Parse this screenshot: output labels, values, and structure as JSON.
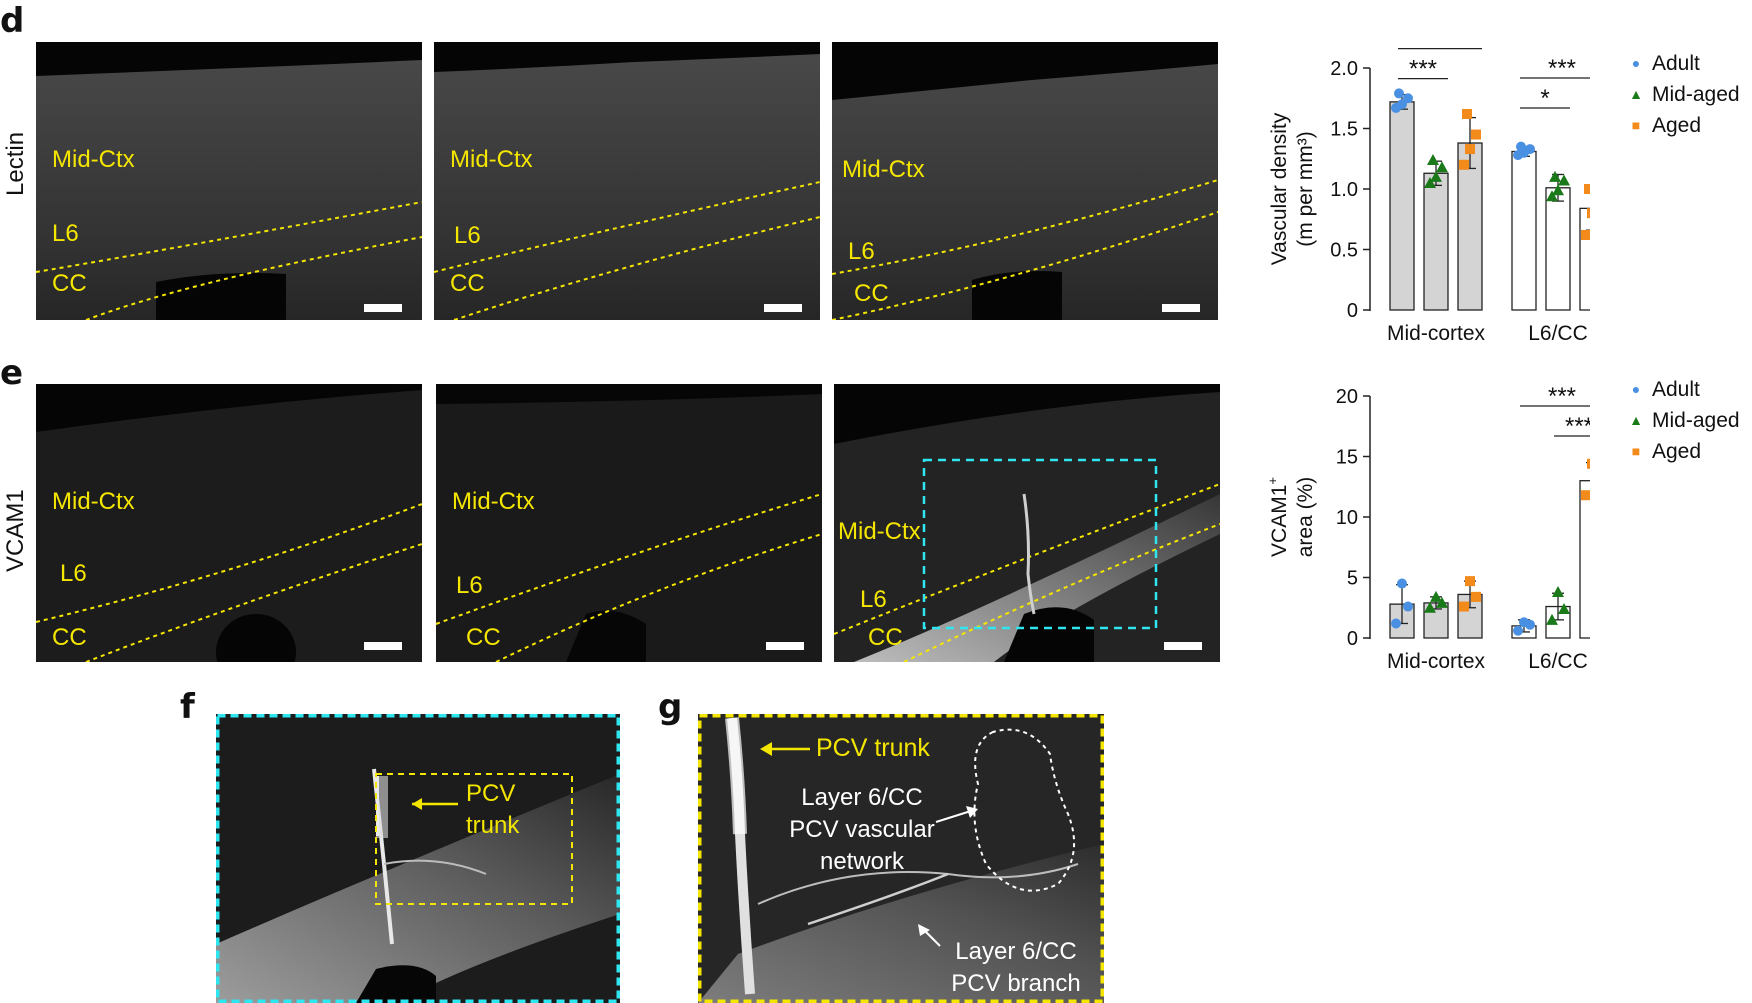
{
  "panels": {
    "d": {
      "letter": "d",
      "row_label": "Lectin",
      "images": [
        {
          "labels": [
            "Mid-Ctx",
            "L6",
            "CC"
          ]
        },
        {
          "labels": [
            "Mid-Ctx",
            "L6",
            "CC"
          ]
        },
        {
          "labels": [
            "Mid-Ctx",
            "L6",
            "CC"
          ]
        }
      ]
    },
    "e": {
      "letter": "e",
      "row_label": "VCAM1",
      "images": [
        {
          "labels": [
            "Mid-Ctx",
            "L6",
            "CC"
          ]
        },
        {
          "labels": [
            "Mid-Ctx",
            "L6",
            "CC"
          ]
        },
        {
          "labels": [
            "Mid-Ctx",
            "L6",
            "CC"
          ]
        }
      ]
    },
    "f": {
      "letter": "f",
      "annotation": [
        "PCV",
        "trunk"
      ]
    },
    "g": {
      "letter": "g",
      "annotations": {
        "trunk": "PCV trunk",
        "network": [
          "Layer 6/CC",
          "PCV vascular",
          "network"
        ],
        "branch": [
          "Layer 6/CC",
          "PCV branch"
        ]
      }
    }
  },
  "colors": {
    "adult": "#4a90e2",
    "mid_aged": "#1a7a1a",
    "aged": "#f28a1c",
    "annotation_yellow": "#f5e600",
    "inset_cyan": "#2ee6f0",
    "bar_fill_mid_cortex": "#d4d4d4",
    "bar_fill_l6cc": "#ffffff"
  },
  "legend": [
    "Adult",
    "Mid-aged",
    "Aged"
  ],
  "chart_data": [
    {
      "type": "bar",
      "categories": [
        "Mid-cortex",
        "L6/CC"
      ],
      "ylabel": [
        "Vascular density",
        "(m per mm³)"
      ],
      "ylim": [
        0,
        2.0
      ],
      "yticks": [
        "0",
        "0.5",
        "1.0",
        "1.5",
        "2.0"
      ],
      "series": [
        {
          "name": "Adult",
          "values": [
            1.72,
            1.31
          ],
          "errors": [
            0.06,
            0.04
          ],
          "points": [
            [
              1.67,
              1.75,
              1.7,
              1.79
            ],
            [
              1.28,
              1.33,
              1.3,
              1.35
            ]
          ]
        },
        {
          "name": "Mid-aged",
          "values": [
            1.13,
            1.01
          ],
          "errors": [
            0.1,
            0.11
          ],
          "points": [
            [
              1.05,
              1.18,
              1.1,
              1.24
            ],
            [
              0.94,
              1.07,
              0.99,
              1.1
            ]
          ]
        },
        {
          "name": "Aged",
          "values": [
            1.38,
            0.84
          ],
          "errors": [
            0.21,
            0.18
          ],
          "points": [
            [
              1.2,
              1.45,
              1.33,
              1.62
            ],
            [
              0.62,
              0.88,
              0.8,
              1.0
            ]
          ]
        }
      ],
      "significance": [
        {
          "label": "**",
          "from": 0,
          "to": 2,
          "category": 0
        },
        {
          "label": "***",
          "from": 0,
          "to": 1,
          "category": 0
        },
        {
          "label": "***",
          "from": 0,
          "to": 2,
          "category": 1
        },
        {
          "label": "*",
          "from": 0,
          "to": 1,
          "category": 1
        }
      ],
      "grid": false
    },
    {
      "type": "bar",
      "categories": [
        "Mid-cortex",
        "L6/CC"
      ],
      "ylabel": [
        "VCAM1",
        "+",
        "area (%)"
      ],
      "ylim": [
        0,
        20
      ],
      "yticks": [
        "0",
        "5",
        "10",
        "15",
        "20"
      ],
      "series": [
        {
          "name": "Adult",
          "values": [
            2.8,
            1.0
          ],
          "errors": [
            1.6,
            0.5
          ],
          "points": [
            [
              1.2,
              2.6,
              4.5
            ],
            [
              0.6,
              1.1,
              1.3
            ]
          ]
        },
        {
          "name": "Mid-aged",
          "values": [
            2.9,
            2.6
          ],
          "errors": [
            0.5,
            1.1
          ],
          "points": [
            [
              2.5,
              2.9,
              3.4
            ],
            [
              1.5,
              2.4,
              3.8
            ]
          ]
        },
        {
          "name": "Aged",
          "values": [
            3.6,
            13.0
          ],
          "errors": [
            1.1,
            1.5
          ],
          "points": [
            [
              2.6,
              3.4,
              4.7
            ],
            [
              11.8,
              13.1,
              14.4
            ]
          ]
        }
      ],
      "significance": [
        {
          "label": "***",
          "from": 0,
          "to": 2,
          "category": 1
        },
        {
          "label": "***",
          "from": 1,
          "to": 2,
          "category": 1
        }
      ],
      "grid": false
    }
  ]
}
